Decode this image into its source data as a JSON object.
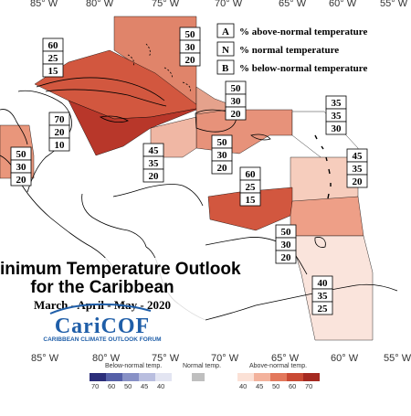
{
  "map": {
    "longitude_labels": [
      "85° W",
      "80° W",
      "75° W",
      "70° W",
      "65° W",
      "60° W",
      "55° W"
    ]
  },
  "legend": {
    "items": [
      {
        "letter": "A",
        "text": "% above-normal temperature"
      },
      {
        "letter": "N",
        "text": "% normal temperature"
      },
      {
        "letter": "B",
        "text": "% below-normal temperature"
      }
    ]
  },
  "regions": [
    {
      "id": "florida-bahamas-north",
      "color": "#e0846a",
      "probs": [
        "50",
        "30",
        "20"
      ]
    },
    {
      "id": "cuba",
      "color": "#d2573f",
      "probs": [
        "60",
        "25",
        "15"
      ]
    },
    {
      "id": "cayman-jamaica",
      "color": "#b8372a",
      "probs": [
        "70",
        "20",
        "10"
      ]
    },
    {
      "id": "belize-central",
      "color": "#e9967b",
      "probs": [
        "50",
        "30",
        "20"
      ]
    },
    {
      "id": "turks-caicos",
      "color": "#e5a28c",
      "probs": [
        "50",
        "30",
        "20"
      ]
    },
    {
      "id": "hispaniola",
      "color": "#e7927a",
      "probs": [
        "50",
        "30",
        "20"
      ]
    },
    {
      "id": "jamaica-south",
      "color": "#f0b7a4",
      "probs": [
        "45",
        "35",
        "20"
      ]
    },
    {
      "id": "northern-leewards",
      "color": "#ffffff",
      "probs": [
        "35",
        "35",
        "30"
      ]
    },
    {
      "id": "leeward-islands",
      "color": "#f6cdbd",
      "probs": [
        "45",
        "35",
        "20"
      ]
    },
    {
      "id": "abc-islands",
      "color": "#d2573f",
      "probs": [
        "60",
        "25",
        "15"
      ]
    },
    {
      "id": "windwards-trinidad",
      "color": "#ee9f87",
      "probs": [
        "50",
        "30",
        "20"
      ]
    },
    {
      "id": "guianas",
      "color": "#fae4dc",
      "probs": [
        "40",
        "35",
        "25"
      ]
    }
  ],
  "title": {
    "line1": "inimum Temperature Outlook",
    "line2": "for the Caribbean",
    "period": "March - April - May - 2020"
  },
  "brand": {
    "name": "CariCOF",
    "subtitle": "CARIBBEAN CLIMATE OUTLOOK FORUM"
  },
  "colorbar": {
    "below_label": "Below-normal temp.",
    "normal_label": "Normal temp.",
    "above_label": "Above-normal temp.",
    "below_ticks": [
      "70",
      "60",
      "50",
      "45",
      "40"
    ],
    "above_ticks": [
      "40",
      "45",
      "50",
      "60",
      "70"
    ],
    "below_colors": [
      "#2b2e7a",
      "#5560a8",
      "#8891c6",
      "#b9bedf",
      "#e3e5f2"
    ],
    "normal_color": "#bfbfbf",
    "above_colors": [
      "#fbe1d6",
      "#f3b29c",
      "#e3785c",
      "#c94a34",
      "#a52a21"
    ]
  }
}
